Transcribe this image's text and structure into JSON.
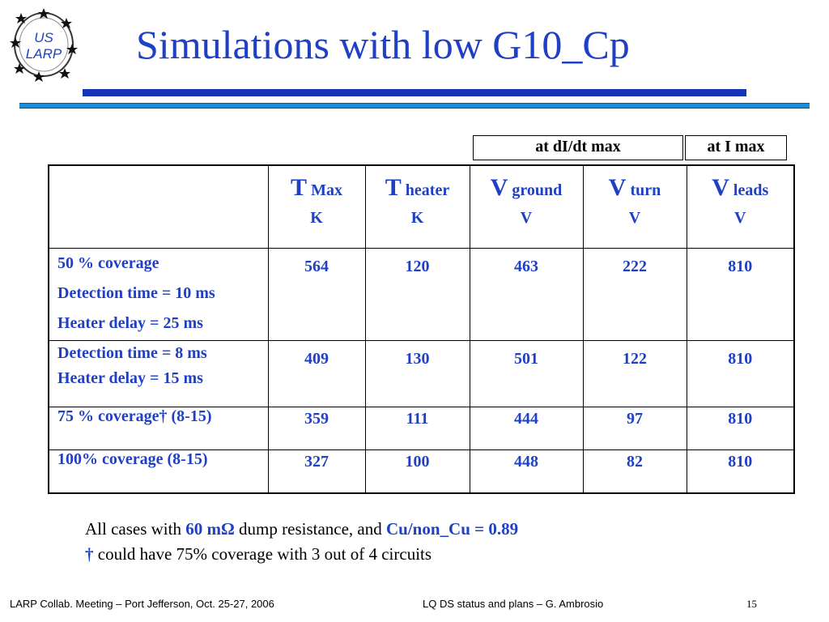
{
  "logo": {
    "line1": "US",
    "line2": "LARP"
  },
  "title": "Simulations with low G10_Cp",
  "col_headers": [
    "at dI/dt max",
    "at I max"
  ],
  "table": {
    "columns": [
      {
        "sym": "T",
        "sub": "Max",
        "unit": "K"
      },
      {
        "sym": "T",
        "sub": "heater",
        "unit": "K"
      },
      {
        "sym": "V",
        "sub": "ground",
        "unit": "V"
      },
      {
        "sym": "V",
        "sub": "turn",
        "unit": "V"
      },
      {
        "sym": "V",
        "sub": "leads",
        "unit": "V"
      }
    ],
    "rows": [
      {
        "label": [
          "50 % coverage",
          "Detection time = 10 ms",
          "Heater delay = 25 ms"
        ],
        "values": [
          "564",
          "120",
          "463",
          "222",
          "810"
        ]
      },
      {
        "label": [
          "Detection time = 8 ms",
          "Heater delay = 15 ms"
        ],
        "values": [
          "409",
          "130",
          "501",
          "122",
          "810"
        ]
      },
      {
        "label": [
          "75 % coverage† (8-15)"
        ],
        "values": [
          "359",
          "111",
          "444",
          "97",
          "810"
        ]
      },
      {
        "label": [
          "100% coverage (8-15)"
        ],
        "values": [
          "327",
          "100",
          "448",
          "82",
          "810"
        ]
      }
    ]
  },
  "notes": {
    "line1_a": "All cases with ",
    "line1_b": "60 mΩ",
    "line1_c": " dump resistance, and ",
    "line1_d": "Cu/non_Cu = 0.89",
    "line2_a": "†",
    "line2_b": " could have 75% coverage with 3 out of 4 circuits"
  },
  "footer": {
    "left": "LARP Collab. Meeting – Port Jefferson, Oct. 25-27, 2006",
    "center": "LQ DS status and plans – G. Ambrosio",
    "page": "15"
  }
}
